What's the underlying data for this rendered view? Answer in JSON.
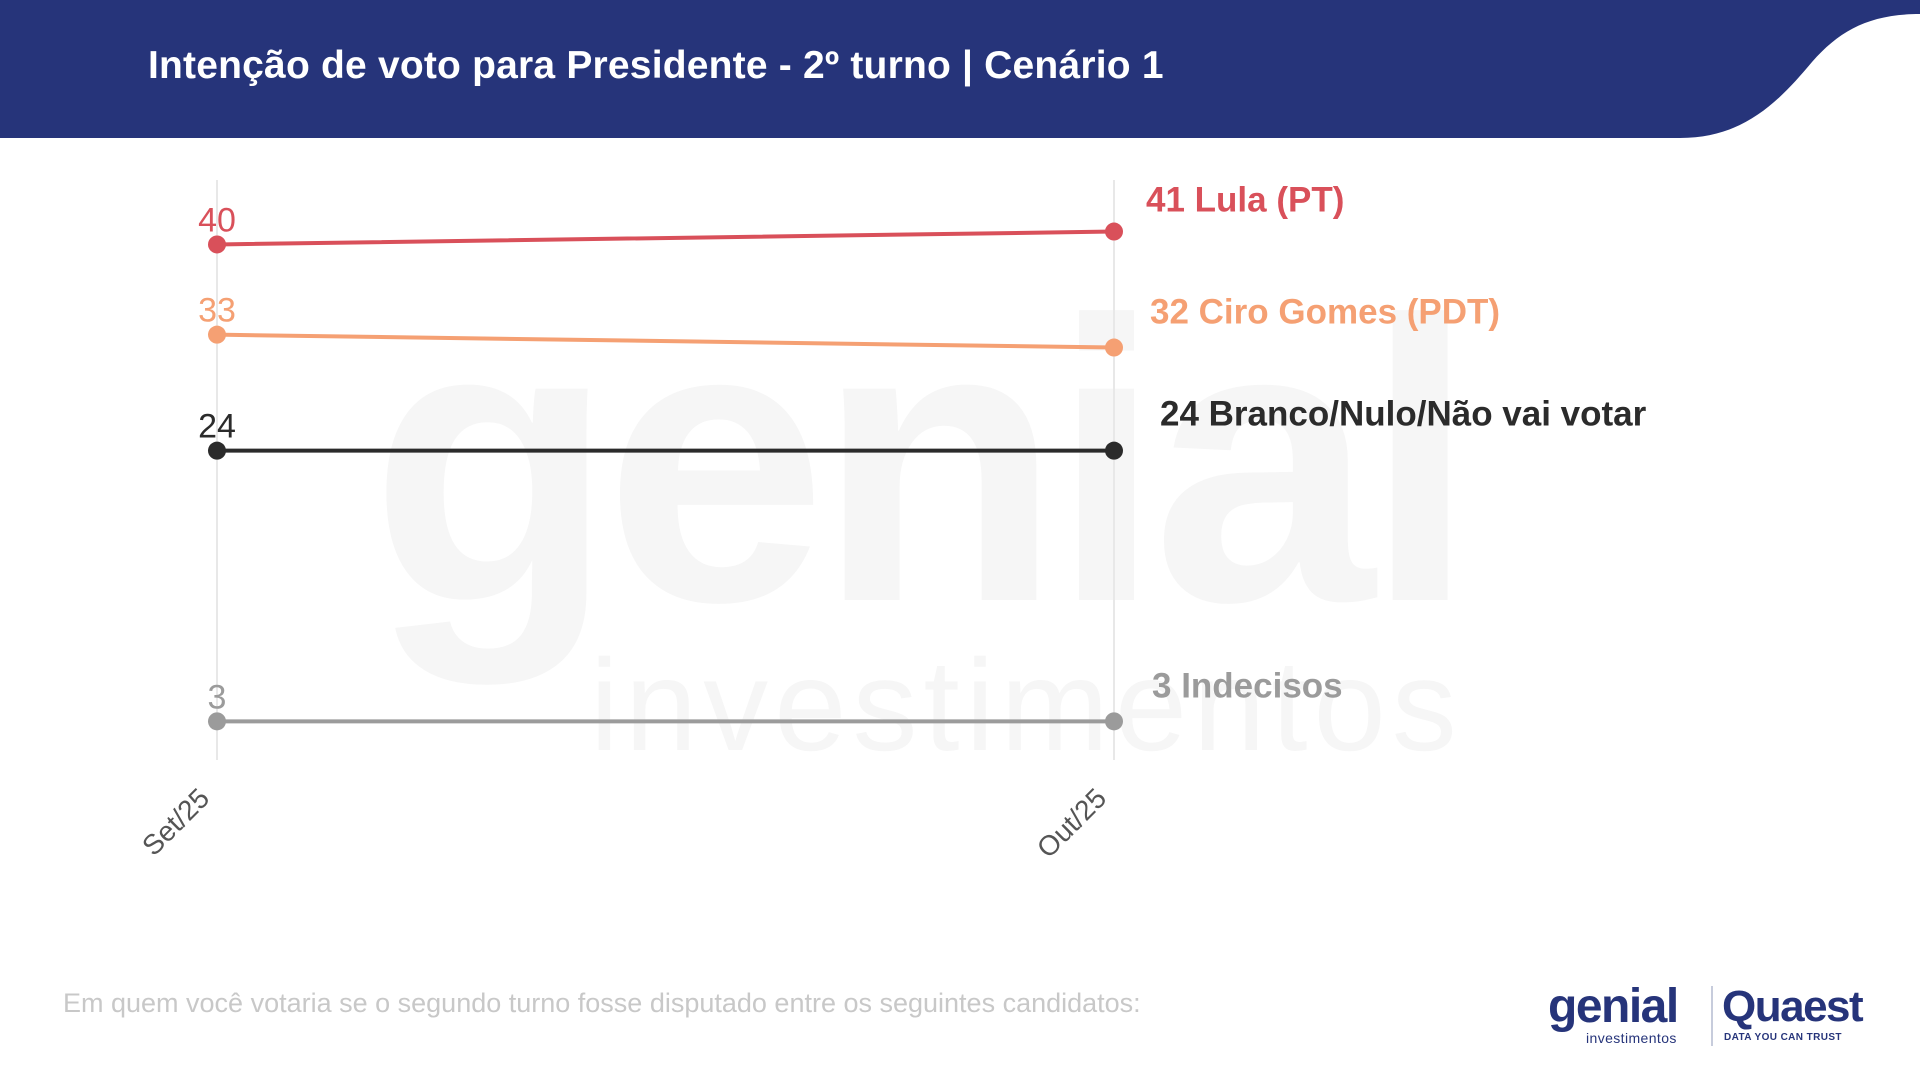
{
  "header": {
    "title": "Intenção de voto para Presidente - 2º turno | Cenário 1",
    "background_color": "#26347a"
  },
  "footnote": "Em quem você votaria se o segundo turno fosse disputado entre os seguintes candidatos:",
  "logos": {
    "genial": "genial",
    "genial_sub": "investimentos",
    "quaest": "Quaest",
    "quaest_sub": "DATA YOU CAN TRUST"
  },
  "watermark": {
    "main": "genial",
    "sub": "investimentos"
  },
  "chart_data": {
    "type": "line",
    "x": [
      "Set/25",
      "Out/25"
    ],
    "ylim": [
      0,
      45
    ],
    "grid": false,
    "series": [
      {
        "name": "Lula (PT)",
        "values": [
          40,
          41
        ],
        "color": "#d9505a"
      },
      {
        "name": "Ciro Gomes (PDT)",
        "values": [
          33,
          32
        ],
        "color": "#f5a073"
      },
      {
        "name": "Branco/Nulo/Não vai votar",
        "values": [
          24,
          24
        ],
        "color": "#2b2b2b"
      },
      {
        "name": "Indecisos",
        "values": [
          3,
          3
        ],
        "color": "#9b9b9b"
      }
    ]
  }
}
